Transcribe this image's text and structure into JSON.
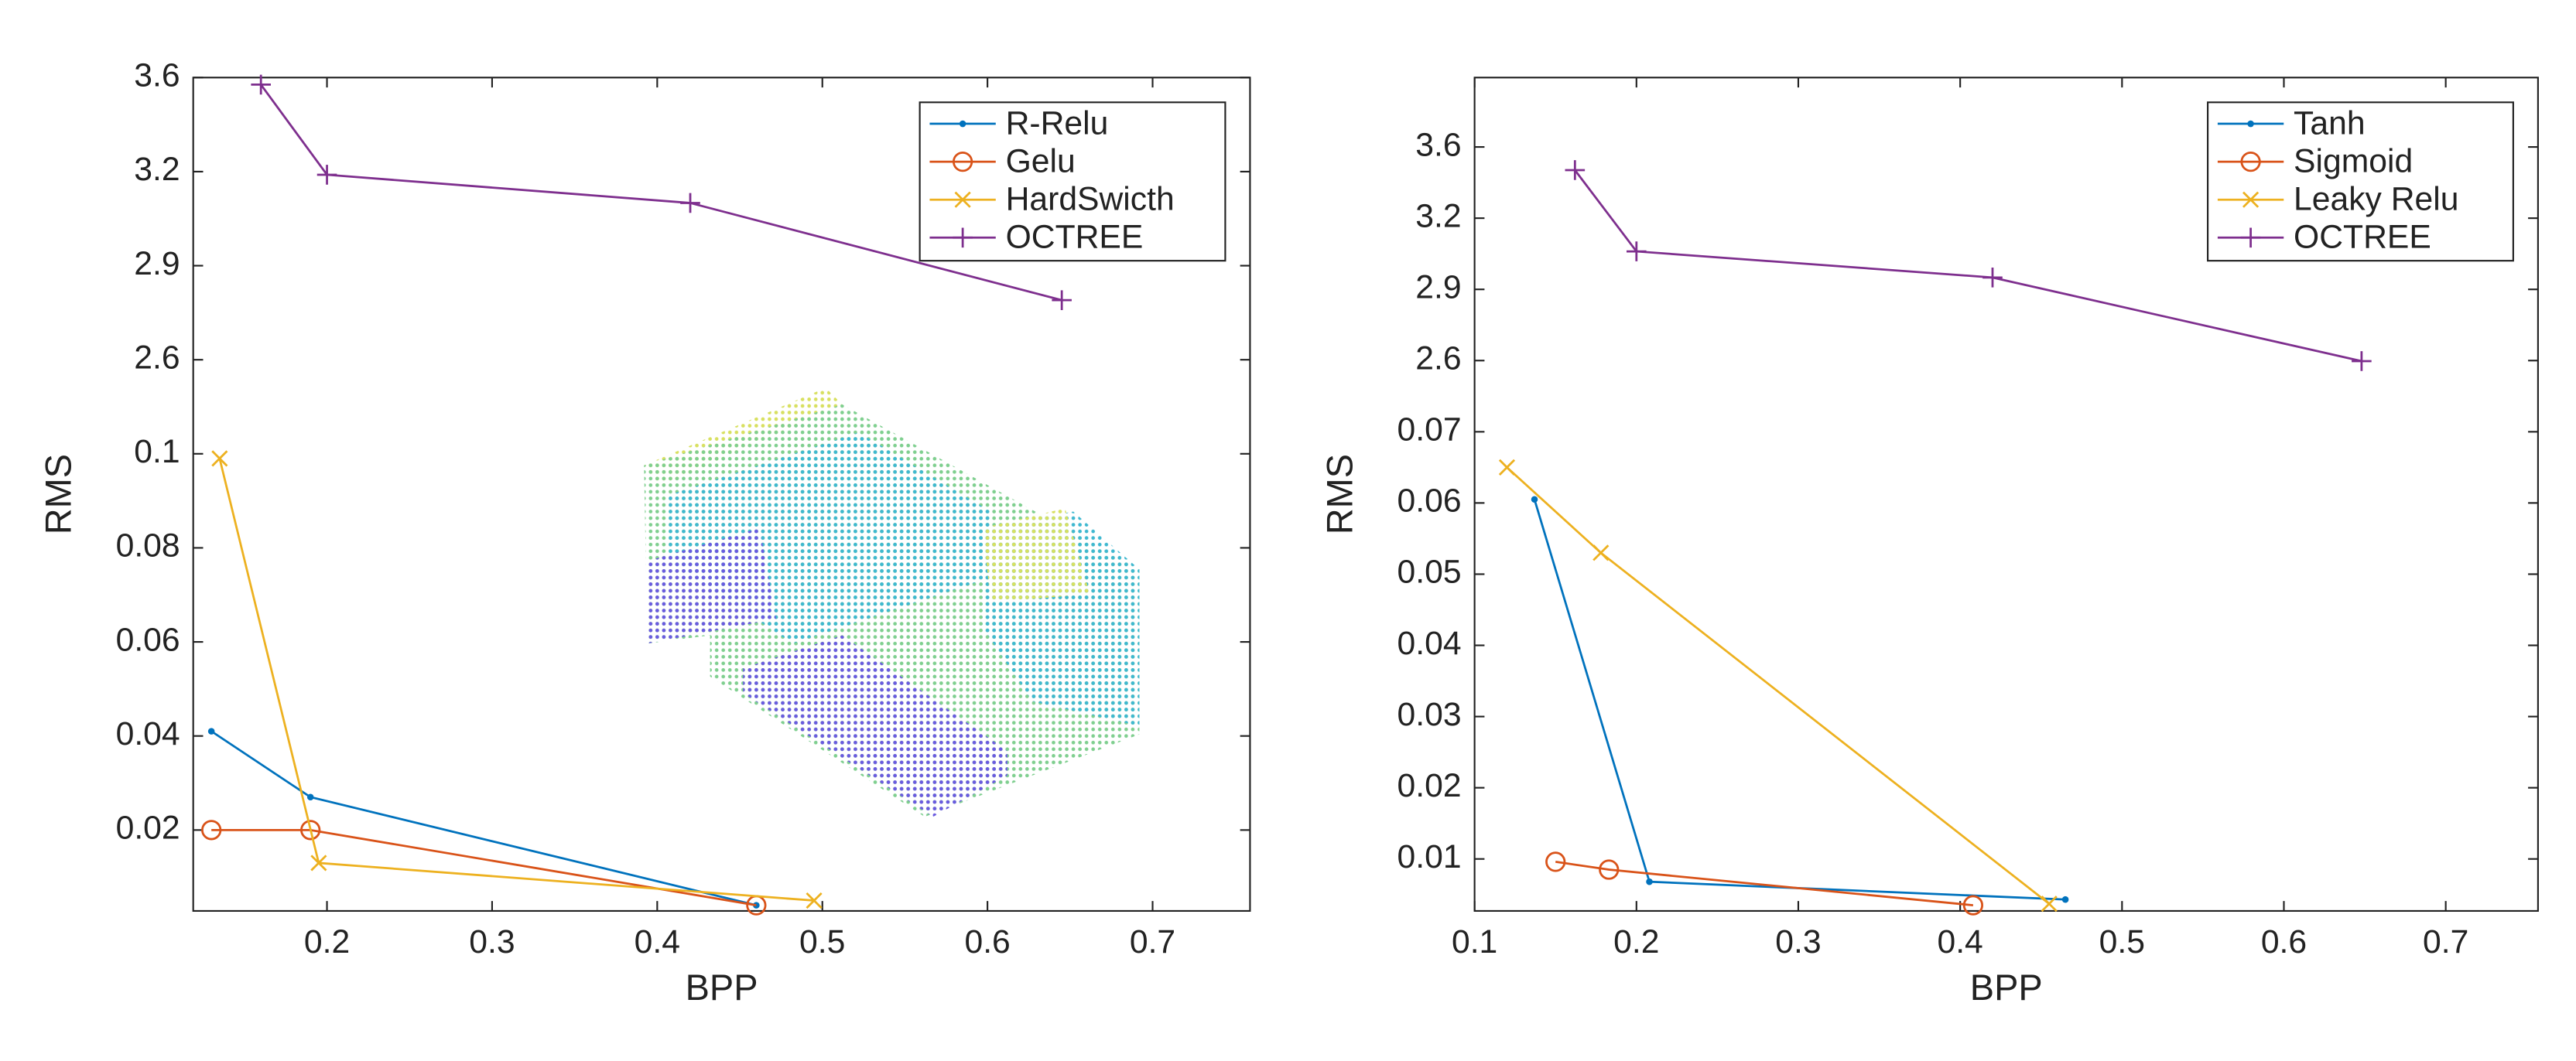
{
  "chart_data": [
    {
      "type": "line",
      "x_label": "BPP",
      "y_label": "RMS",
      "xlim": [
        0.119,
        0.759
      ],
      "xticks": [
        0.2,
        0.3,
        0.4,
        0.5,
        0.6,
        0.7
      ],
      "ylim": [
        0.0028,
        3.6
      ],
      "yticks": [
        0.02,
        0.04,
        0.06,
        0.08,
        0.1,
        2.6,
        2.9,
        3.2,
        3.6
      ],
      "legend": "upper right",
      "series": [
        {
          "name": "R-Relu",
          "color": "#0072bd",
          "marker": "dot",
          "x": [
            0.13,
            0.19,
            0.46
          ],
          "values": [
            0.041,
            0.027,
            0.004
          ]
        },
        {
          "name": "Gelu",
          "color": "#d95319",
          "marker": "circle",
          "x": [
            0.13,
            0.19,
            0.46
          ],
          "values": [
            0.02,
            0.02,
            0.004
          ]
        },
        {
          "name": "HardSwicth",
          "color": "#edb120",
          "marker": "x",
          "x": [
            0.135,
            0.195,
            0.495
          ],
          "values": [
            0.099,
            0.013,
            0.005
          ]
        },
        {
          "name": "OCTREE",
          "color": "#7e2f8e",
          "marker": "plus",
          "x": [
            0.16,
            0.2,
            0.42,
            0.645
          ],
          "values": [
            3.57,
            3.19,
            3.1,
            2.79
          ]
        }
      ]
    },
    {
      "type": "line",
      "x_label": "BPP",
      "y_label": "RMS",
      "xlim": [
        0.1,
        0.757
      ],
      "xticks": [
        0.1,
        0.2,
        0.3,
        0.4,
        0.5,
        0.6,
        0.7
      ],
      "ylim": [
        0.0027,
        3.99
      ],
      "yticks": [
        0.01,
        0.02,
        0.03,
        0.04,
        0.05,
        0.06,
        0.07,
        2.6,
        2.9,
        3.2,
        3.6
      ],
      "legend": "upper right",
      "series": [
        {
          "name": "Tanh",
          "color": "#0072bd",
          "marker": "dot",
          "x": [
            0.137,
            0.208,
            0.465
          ],
          "values": [
            0.0605,
            0.0068,
            0.0043
          ]
        },
        {
          "name": "Sigmoid",
          "color": "#d95319",
          "marker": "circle",
          "x": [
            0.15,
            0.183,
            0.408
          ],
          "values": [
            0.0096,
            0.0085,
            0.0035
          ]
        },
        {
          "name": "Leaky Relu",
          "color": "#edb120",
          "marker": "x",
          "x": [
            0.12,
            0.178,
            0.455
          ],
          "values": [
            0.065,
            0.053,
            0.0037
          ]
        },
        {
          "name": "OCTREE",
          "color": "#7e2f8e",
          "marker": "plus",
          "x": [
            0.162,
            0.2,
            0.42,
            0.648
          ],
          "values": [
            3.47,
            3.06,
            2.95,
            2.58
          ]
        }
      ]
    }
  ]
}
